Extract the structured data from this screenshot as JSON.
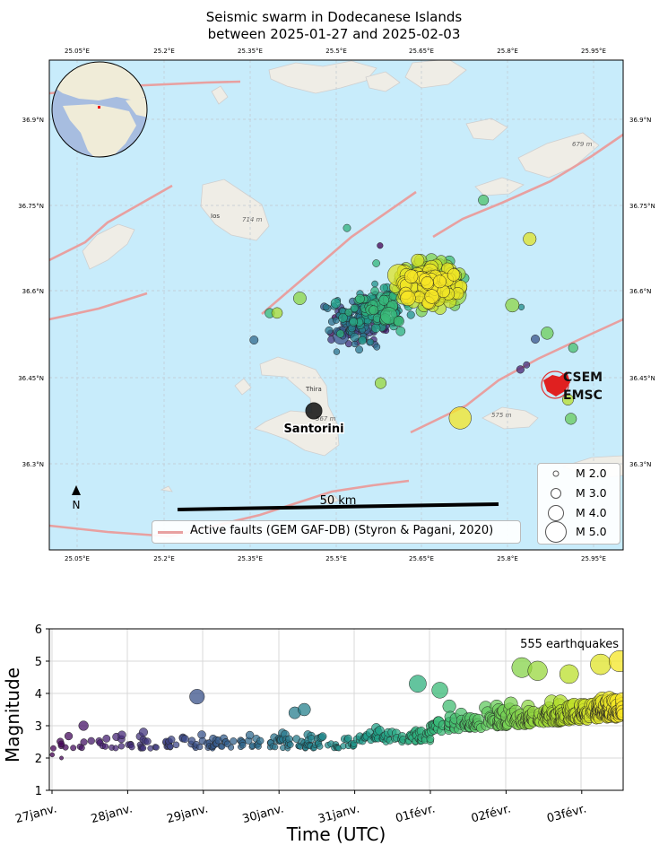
{
  "title_line1": "Seismic swarm in Dodecanese Islands",
  "title_line2": "between 2025-01-27 and 2025-02-03",
  "map": {
    "lon_ticks": [
      "25.05°E",
      "25.2°E",
      "25.35°E",
      "25.5°E",
      "25.65°E",
      "25.8°E",
      "25.95°E"
    ],
    "lat_ticks": [
      "36.9°N",
      "36.75°N",
      "36.6°N",
      "36.45°N",
      "36.3°N"
    ],
    "island_label": "Santorini",
    "small_labels": [
      "Ios",
      "714 m",
      "Thira",
      "567 m",
      "679 m",
      "575 m"
    ],
    "scale_bar_label": "50 km",
    "north_label": "N",
    "fault_legend": "Active faults (GEM GAF-DB) (Styron & Pagani, 2020)",
    "logo_text": [
      "CSEM",
      "EMSC"
    ],
    "magnitude_legend": [
      "M 2.0",
      "M 3.0",
      "M 4.0",
      "M 5.0"
    ],
    "colors": {
      "sea": "#c8ecfb",
      "land": "#efede6",
      "fault": "#e8a0a0",
      "colormap": "viridis"
    }
  },
  "timeline": {
    "annotation": "555 earthquakes",
    "ylabel": "Magnitude",
    "xlabel": "Time (UTC)",
    "x_ticks": [
      "27janv.",
      "28janv.",
      "29janv.",
      "30janv.",
      "31janv.",
      "01févr.",
      "02févr.",
      "03févr."
    ],
    "y_ticks": [
      "1",
      "2",
      "3",
      "4",
      "5",
      "6"
    ]
  },
  "chart_data": {
    "type": "scatter",
    "title": "",
    "xlabel": "Time (UTC)",
    "ylabel": "Magnitude",
    "ylim": [
      1,
      6
    ],
    "xlim": [
      "2025-01-27",
      "2025-02-03 12:00"
    ],
    "grid": true,
    "total_events": 555,
    "points_sample": [
      {
        "t": "2025-01-27 00:05",
        "m": 2.1
      },
      {
        "t": "2025-01-27 03:00",
        "m": 2.0
      },
      {
        "t": "2025-01-27 10:00",
        "m": 3.0
      },
      {
        "t": "2025-01-28 05:00",
        "m": 2.8
      },
      {
        "t": "2025-01-28 22:00",
        "m": 3.9
      },
      {
        "t": "2025-01-30 05:00",
        "m": 3.4
      },
      {
        "t": "2025-01-30 08:00",
        "m": 3.5
      },
      {
        "t": "2025-01-31 20:00",
        "m": 4.3
      },
      {
        "t": "2025-02-01 03:00",
        "m": 4.1
      },
      {
        "t": "2025-02-01 06:00",
        "m": 3.6
      },
      {
        "t": "2025-02-02 05:00",
        "m": 4.8
      },
      {
        "t": "2025-02-02 10:00",
        "m": 4.7
      },
      {
        "t": "2025-02-02 20:00",
        "m": 4.6
      },
      {
        "t": "2025-02-03 06:00",
        "m": 4.9
      },
      {
        "t": "2025-02-03 12:00",
        "m": 5.0
      }
    ]
  }
}
